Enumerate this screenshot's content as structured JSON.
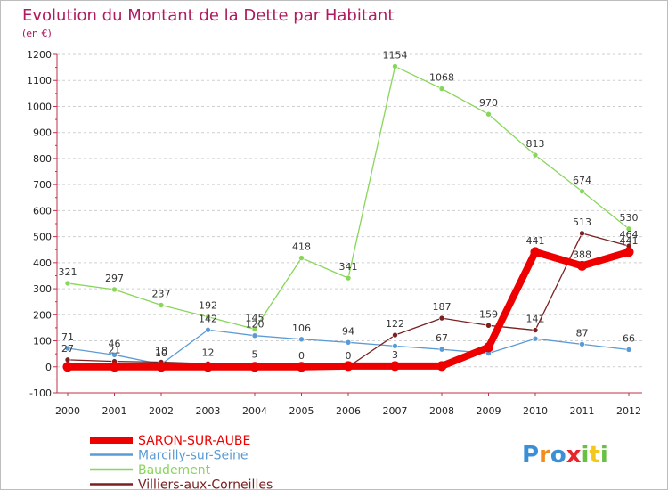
{
  "chart_data": {
    "type": "line",
    "title": "Evolution du Montant de la Dette par Habitant",
    "subtitle": "(en €)",
    "x": [
      "2000",
      "2001",
      "2002",
      "2003",
      "2004",
      "2005",
      "2006",
      "2007",
      "2008",
      "2009",
      "2010",
      "2011",
      "2012"
    ],
    "ylim": [
      -100,
      1200
    ],
    "yticks": [
      -100,
      0,
      100,
      200,
      300,
      400,
      500,
      600,
      700,
      800,
      900,
      1000,
      1100,
      1200
    ],
    "grid": "dashed-horizontal",
    "legend_position": "bottom-left",
    "series": [
      {
        "name": "SARON-SUR-AUBE",
        "color": "#ee0000",
        "values": [
          0,
          0,
          0,
          0,
          0,
          0,
          3,
          3,
          3,
          75,
          441,
          388,
          441
        ],
        "labels": [
          "",
          "",
          "",
          "",
          "",
          "",
          "",
          "3",
          "",
          "",
          "441",
          "388",
          "441"
        ]
      },
      {
        "name": "Marcilly-sur-Seine",
        "color": "#5b9bd5",
        "values": [
          71,
          46,
          10,
          142,
          120,
          106,
          94,
          80,
          67,
          52,
          108,
          87,
          66
        ],
        "labels": [
          "71",
          "46",
          "10",
          "142",
          "120",
          "106",
          "94",
          "",
          "67",
          "",
          "",
          "87",
          "66"
        ]
      },
      {
        "name": "Baudement",
        "color": "#88d65a",
        "values": [
          321,
          297,
          237,
          192,
          145,
          418,
          341,
          1154,
          1068,
          970,
          813,
          674,
          530
        ],
        "labels": [
          "321",
          "297",
          "237",
          "192",
          "145",
          "418",
          "341",
          "1154",
          "1068",
          "970",
          "813",
          "674",
          "530"
        ]
      },
      {
        "name": "Villiers-aux-Corneilles",
        "color": "#7a2020",
        "values": [
          27,
          21,
          18,
          12,
          5,
          0,
          0,
          122,
          187,
          159,
          141,
          513,
          464
        ],
        "labels": [
          "27",
          "21",
          "18",
          "12",
          "5",
          "0",
          "0",
          "122",
          "187",
          "159",
          "141",
          "513",
          "464"
        ]
      }
    ]
  },
  "logo": {
    "text": "Proxiti",
    "letters": [
      "P",
      "r",
      "o",
      "x",
      "i",
      "t",
      "i"
    ],
    "colors": [
      "#3b8fd6",
      "#f28c1c",
      "#3b8fd6",
      "#e8252a",
      "#6abf45",
      "#f2c81c",
      "#6abf45"
    ]
  }
}
